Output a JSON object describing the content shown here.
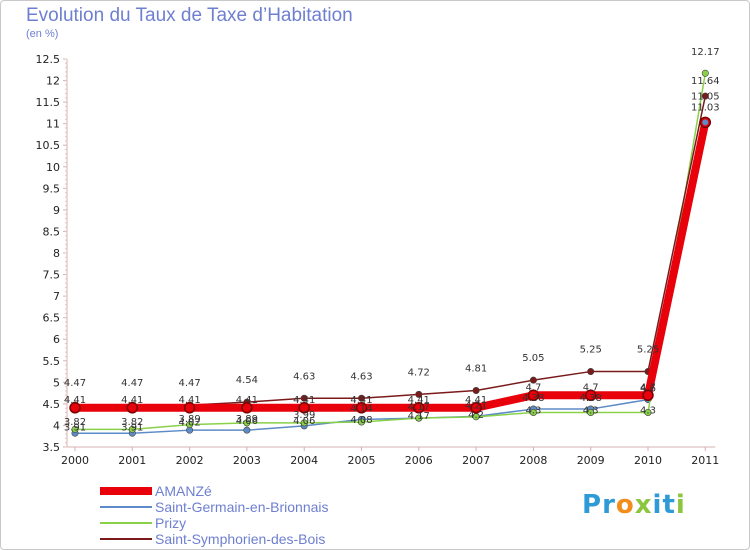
{
  "title": "Evolution du Taux de Taxe d’Habitation",
  "subtitle": "(en %)",
  "logo": {
    "letters": [
      "P",
      "r",
      "o",
      "x",
      "i",
      "t",
      "i"
    ],
    "colors": [
      "#2f9bd6",
      "#2f9bd6",
      "#f28c1a",
      "#8cc63f",
      "#2f9bd6",
      "#2f9bd6",
      "#8cc63f"
    ]
  },
  "chart_data": {
    "type": "line",
    "title": "Evolution du Taux de Taxe d’Habitation",
    "ylabel": "(en %)",
    "xlabel": "",
    "categories": [
      "2000",
      "2001",
      "2002",
      "2003",
      "2004",
      "2005",
      "2006",
      "2007",
      "2008",
      "2009",
      "2010",
      "2011"
    ],
    "ylim": [
      3.5,
      12.5
    ],
    "yticks": [
      "3.5",
      "4",
      "4.5",
      "5",
      "5.5",
      "6",
      "6.5",
      "7",
      "7.5",
      "8",
      "8.5",
      "9",
      "9.5",
      "10",
      "10.5",
      "11",
      "11.5",
      "12",
      "12.5"
    ],
    "grid": false,
    "legend_position": "bottom-left",
    "series": [
      {
        "name": "AMANZé",
        "color": "#e8000b",
        "values": [
          4.41,
          4.41,
          4.41,
          4.41,
          4.41,
          4.41,
          4.41,
          4.41,
          4.7,
          4.7,
          4.7,
          11.03
        ],
        "labels": [
          "4.41",
          "4.41",
          "4.41",
          "4.41",
          "4.41",
          "4.41",
          "4.41",
          "4.41",
          "4.7",
          "4.7",
          "4.7",
          "11.03"
        ]
      },
      {
        "name": "Saint-Germain-en-Brionnais",
        "color": "#5d8bc7",
        "values": [
          3.82,
          3.82,
          3.89,
          3.89,
          3.99,
          4.14,
          4.17,
          4.21,
          4.38,
          4.38,
          4.6,
          11.05
        ],
        "labels": [
          "3.82",
          "3.82",
          "3.89",
          "3.89",
          "3.99",
          "4.14",
          "4.17",
          "4.21",
          "4.38",
          "4.38",
          "4.6",
          "11.05"
        ]
      },
      {
        "name": "Prizy",
        "color": "#8ad14a",
        "values": [
          3.91,
          3.91,
          4.02,
          4.06,
          4.06,
          4.08,
          4.17,
          4.2,
          4.3,
          4.3,
          4.3,
          12.17
        ],
        "labels": [
          "3.91",
          "3.91",
          "4.02",
          "4.06",
          "4.06",
          "4.08",
          "4.17",
          "4.2",
          "4.3",
          "4.3",
          "4.3",
          "12.17"
        ]
      },
      {
        "name": "Saint-Symphorien-des-Bois",
        "color": "#7a1a1a",
        "values": [
          4.47,
          4.47,
          4.47,
          4.54,
          4.63,
          4.63,
          4.72,
          4.81,
          5.05,
          5.25,
          5.25,
          11.64
        ],
        "labels": [
          "4.47",
          "4.47",
          "4.47",
          "4.54",
          "4.63",
          "4.63",
          "4.72",
          "4.81",
          "5.05",
          "5.25",
          "5.25",
          "11.64"
        ]
      }
    ]
  }
}
